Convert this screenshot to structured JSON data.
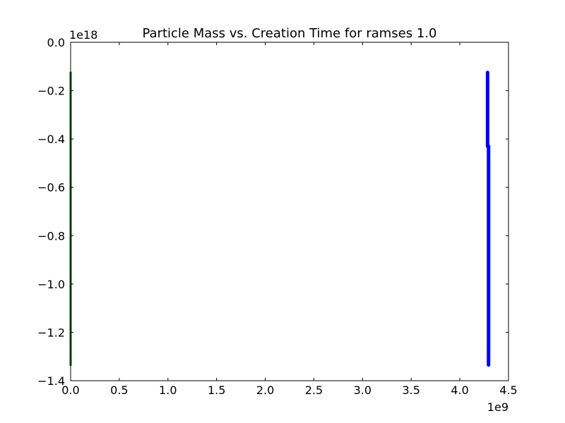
{
  "chart_data": {
    "type": "scatter",
    "title": "Particle Mass vs. Creation Time for ramses 1.0",
    "xlabel": "",
    "ylabel": "",
    "x_offset_label": "1e9",
    "y_offset_label": "1e18",
    "xlim": [
      0,
      4.5
    ],
    "ylim": [
      -1.4,
      0.0
    ],
    "x_ticks": [
      0.0,
      0.5,
      1.0,
      1.5,
      2.0,
      2.5,
      3.0,
      3.5,
      4.0,
      4.5
    ],
    "x_tick_labels": [
      "0.0",
      "0.5",
      "1.0",
      "1.5",
      "2.0",
      "2.5",
      "3.0",
      "3.5",
      "4.0",
      "4.5"
    ],
    "y_ticks": [
      0.0,
      -0.2,
      -0.4,
      -0.6,
      -0.8,
      -1.0,
      -1.2,
      -1.4
    ],
    "y_tick_labels": [
      "0.0",
      "−0.2",
      "−0.4",
      "−0.6",
      "−0.8",
      "−1.0",
      "−1.2",
      "−1.4"
    ],
    "grid": false,
    "series": [
      {
        "color": "#006400",
        "segments": [
          {
            "x": 0.0,
            "y_top": -0.125,
            "y_bottom": -1.335
          }
        ]
      },
      {
        "color": "#0000ff",
        "segments": [
          {
            "x": 4.285,
            "y_top": -0.125,
            "y_bottom": -0.43
          },
          {
            "x": 4.295,
            "y_top": -0.43,
            "y_bottom": -1.335
          }
        ]
      }
    ]
  }
}
